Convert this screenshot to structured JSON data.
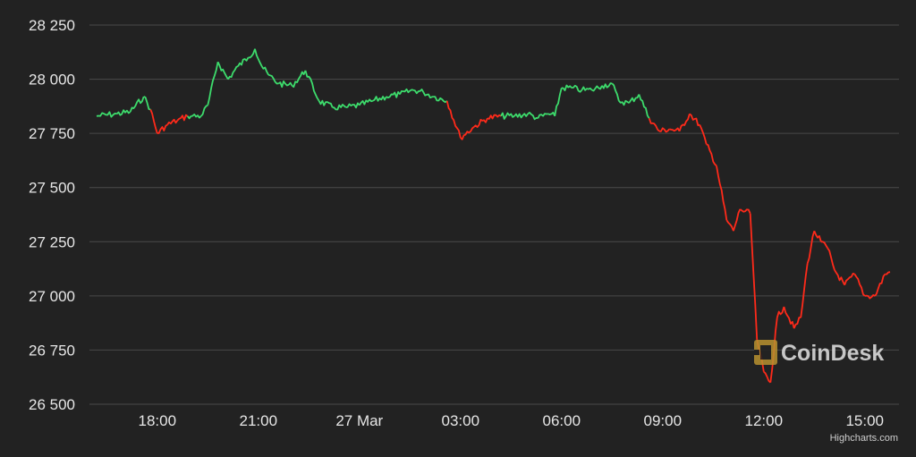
{
  "chart_data": {
    "type": "line",
    "title": "",
    "xlabel": "",
    "ylabel": "",
    "x_ticks": [
      "18:00",
      "21:00",
      "27 Mar",
      "03:00",
      "06:00",
      "09:00",
      "12:00",
      "15:00"
    ],
    "y_ticks": [
      "26 500",
      "26 750",
      "27 000",
      "27 250",
      "27 500",
      "27 750",
      "28 000",
      "28 250"
    ],
    "ylim": [
      26500,
      28250
    ],
    "xlim_hours": [
      16.2,
      39.75
    ],
    "grid": "horizontal",
    "legend": "none",
    "up_color": "#3ddc6c",
    "down_color": "#ff2a1a",
    "series": [
      {
        "x": [
          16.2,
          16.8,
          17.2,
          17.6,
          17.8,
          18.0,
          18.3,
          18.6,
          18.9,
          19.0,
          19.3,
          19.5,
          19.8,
          20.1,
          20.4,
          20.7,
          20.9,
          21.1,
          21.3,
          21.6,
          22.0,
          22.4,
          22.8,
          23.2,
          23.6,
          24.0,
          24.4,
          24.8,
          25.2,
          25.6,
          25.9,
          26.2,
          26.6,
          27.0,
          27.4,
          27.8,
          28.2,
          28.6,
          29.0,
          29.3,
          29.6,
          29.8,
          30.0,
          30.3,
          30.6,
          30.9,
          31.2,
          31.5,
          31.7,
          32.0,
          32.3,
          32.6,
          32.9,
          33.2,
          33.5,
          33.8,
          34.1,
          34.3,
          34.6,
          34.9,
          35.1,
          35.3,
          35.6,
          35.8,
          36.0,
          36.2,
          36.4,
          36.6,
          36.9,
          37.1,
          37.3,
          37.5,
          37.7,
          37.9,
          38.1,
          38.4,
          38.7,
          39.0,
          39.3,
          39.6,
          39.75
        ],
        "y": [
          27830,
          27840,
          27850,
          27920,
          27860,
          27750,
          27790,
          27810,
          27830,
          27830,
          27830,
          27880,
          28080,
          28000,
          28060,
          28100,
          28140,
          28060,
          28020,
          27980,
          27970,
          28040,
          27900,
          27870,
          27870,
          27880,
          27900,
          27920,
          27930,
          27950,
          27940,
          27920,
          27900,
          27730,
          27780,
          27820,
          27830,
          27830,
          27840,
          27820,
          27840,
          27830,
          27960,
          27960,
          27950,
          27950,
          27970,
          27980,
          27900,
          27890,
          27930,
          27820,
          27760,
          27770,
          27760,
          27840,
          27790,
          27700,
          27600,
          27350,
          27300,
          27400,
          27380,
          26800,
          26650,
          26600,
          26900,
          26950,
          26850,
          26900,
          27150,
          27300,
          27250,
          27220,
          27120,
          27050,
          27100,
          27000,
          27000,
          27100,
          27110
        ]
      }
    ]
  },
  "watermark": {
    "text": "CoinDesk",
    "icon": "coindesk-logo-icon"
  },
  "credit": "Highcharts.com"
}
